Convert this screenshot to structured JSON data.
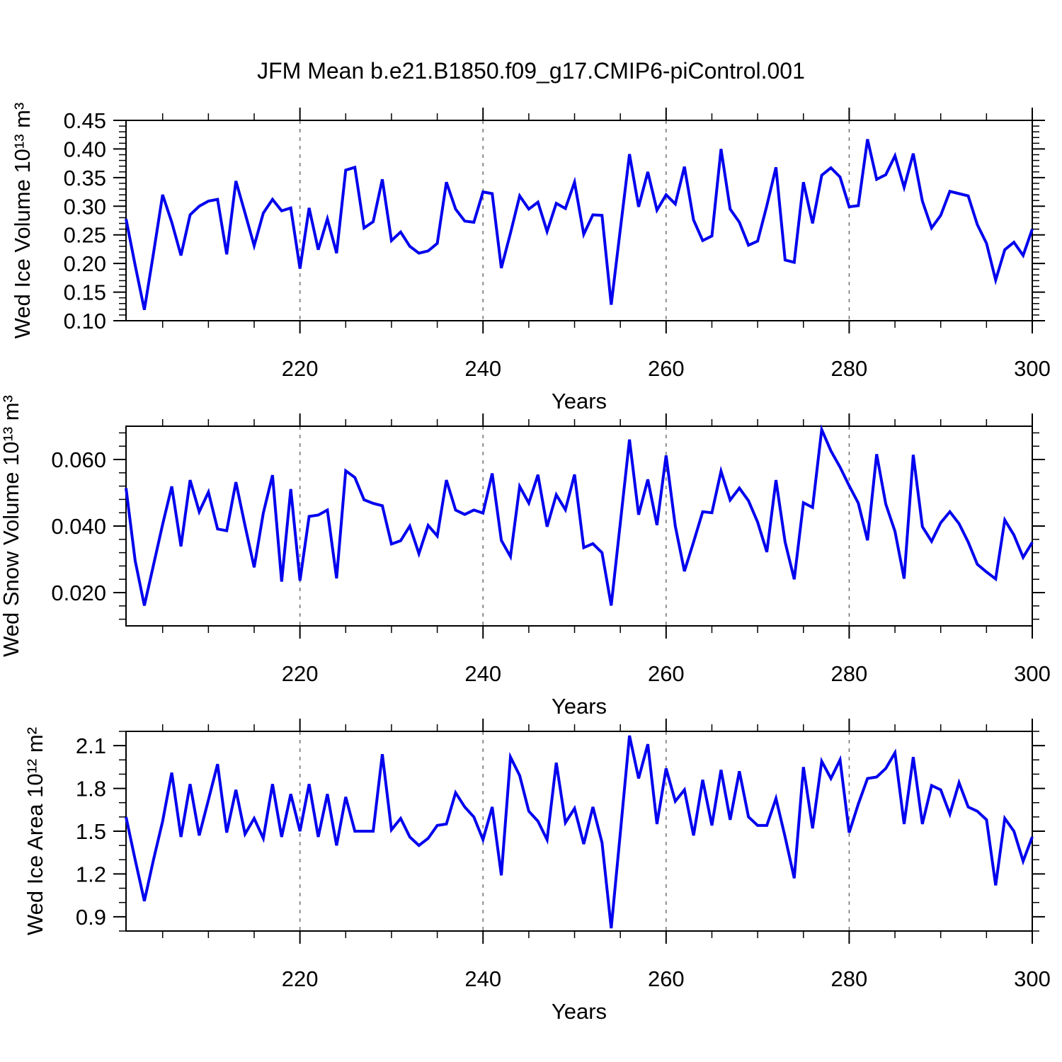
{
  "title": "JFM Mean b.e21.B1850.f09_g17.CMIP6-piControl.001",
  "colors": {
    "line": "#0000ee",
    "frame": "#000000",
    "grid": "#666666"
  },
  "chart_data": [
    {
      "type": "line",
      "ylabel": "Wed Ice Volume 10¹³ m³",
      "xlabel": "Years",
      "years": {
        "start": 201,
        "end": 300,
        "step": 1
      },
      "xlim": [
        201,
        300
      ],
      "ylim": [
        0.1,
        0.45
      ],
      "xticks": [
        220,
        240,
        260,
        280,
        300
      ],
      "xtick_minor": 5,
      "x_grid_dashed": [
        220,
        240,
        260,
        280
      ],
      "ytick_values": [
        0.45,
        0.4,
        0.35,
        0.3,
        0.25,
        0.2,
        0.15,
        0.1
      ],
      "ytick_labels": [
        "0.45",
        "0.40",
        "0.35",
        "0.30",
        "0.25",
        "0.20",
        "0.15",
        "0.10"
      ],
      "ytick_minor": 0.01,
      "values": [
        0.278,
        0.197,
        0.119,
        0.218,
        0.32,
        0.272,
        0.214,
        0.285,
        0.3,
        0.309,
        0.312,
        0.216,
        0.344,
        0.288,
        0.231,
        0.288,
        0.312,
        0.292,
        0.297,
        0.191,
        0.297,
        0.224,
        0.278,
        0.218,
        0.363,
        0.368,
        0.262,
        0.273,
        0.347,
        0.24,
        0.255,
        0.23,
        0.218,
        0.222,
        0.235,
        0.342,
        0.295,
        0.274,
        0.272,
        0.325,
        0.322,
        0.192,
        0.253,
        0.318,
        0.295,
        0.307,
        0.256,
        0.305,
        0.296,
        0.342,
        0.251,
        0.285,
        0.284,
        0.128,
        0.26,
        0.391,
        0.299,
        0.36,
        0.293,
        0.32,
        0.304,
        0.369,
        0.276,
        0.24,
        0.248,
        0.4,
        0.295,
        0.272,
        0.232,
        0.239,
        0.301,
        0.368,
        0.206,
        0.202,
        0.342,
        0.27,
        0.354,
        0.367,
        0.351,
        0.299,
        0.301,
        0.417,
        0.347,
        0.355,
        0.388,
        0.333,
        0.392,
        0.309,
        0.262,
        0.284,
        0.326,
        0.322,
        0.318,
        0.268,
        0.235,
        0.171,
        0.224,
        0.237,
        0.214,
        0.26
      ]
    },
    {
      "type": "line",
      "ylabel": "Wed Snow Volume 10¹³ m³",
      "xlabel": "Years",
      "years": {
        "start": 201,
        "end": 300,
        "step": 1
      },
      "xlim": [
        201,
        300
      ],
      "ylim": [
        0.01,
        0.07
      ],
      "xticks": [
        220,
        240,
        260,
        280,
        300
      ],
      "xtick_minor": 5,
      "x_grid_dashed": [
        220,
        240,
        260,
        280
      ],
      "ytick_values": [
        0.06,
        0.04,
        0.02
      ],
      "ytick_labels": [
        "0.060",
        "0.040",
        "0.020"
      ],
      "ytick_minor": 0.004,
      "values": [
        0.0514,
        0.0296,
        0.0161,
        0.0283,
        0.0405,
        0.0519,
        0.0339,
        0.0538,
        0.0443,
        0.0502,
        0.0391,
        0.0386,
        0.0532,
        0.0401,
        0.0276,
        0.0439,
        0.0553,
        0.0233,
        0.0511,
        0.0236,
        0.0429,
        0.0433,
        0.0448,
        0.0243,
        0.0566,
        0.0546,
        0.0479,
        0.0468,
        0.0461,
        0.0346,
        0.0356,
        0.04,
        0.0317,
        0.0402,
        0.037,
        0.0538,
        0.0448,
        0.0435,
        0.0448,
        0.0439,
        0.0558,
        0.0357,
        0.0308,
        0.0519,
        0.0469,
        0.0554,
        0.0398,
        0.0494,
        0.0449,
        0.0555,
        0.0335,
        0.0347,
        0.032,
        0.0161,
        0.041,
        0.066,
        0.0434,
        0.054,
        0.0403,
        0.0612,
        0.04,
        0.0264,
        0.0352,
        0.0443,
        0.044,
        0.0565,
        0.0478,
        0.0514,
        0.0476,
        0.0412,
        0.0322,
        0.0538,
        0.0352,
        0.024,
        0.047,
        0.0456,
        0.069,
        0.0626,
        0.0577,
        0.0521,
        0.0469,
        0.0357,
        0.0616,
        0.0466,
        0.0384,
        0.0242,
        0.0614,
        0.0398,
        0.0354,
        0.041,
        0.0443,
        0.0407,
        0.0352,
        0.0285,
        0.0262,
        0.0241,
        0.0418,
        0.0373,
        0.0306,
        0.0351
      ]
    },
    {
      "type": "line",
      "ylabel": "Wed Ice Area 10¹² m²",
      "xlabel": "Years",
      "years": {
        "start": 201,
        "end": 300,
        "step": 1
      },
      "xlim": [
        201,
        300
      ],
      "ylim": [
        0.8,
        2.2
      ],
      "xticks": [
        220,
        240,
        260,
        280,
        300
      ],
      "xtick_minor": 5,
      "x_grid_dashed": [
        220,
        240,
        260,
        280
      ],
      "ytick_values": [
        2.1,
        1.8,
        1.5,
        1.2,
        0.9
      ],
      "ytick_labels": [
        "2.1",
        "1.8",
        "1.5",
        "1.2",
        "0.9"
      ],
      "ytick_minor": 0.1,
      "values": [
        1.6,
        1.3,
        1.01,
        1.3,
        1.57,
        1.91,
        1.46,
        1.83,
        1.47,
        1.72,
        1.97,
        1.49,
        1.79,
        1.48,
        1.59,
        1.45,
        1.83,
        1.46,
        1.76,
        1.5,
        1.83,
        1.46,
        1.76,
        1.4,
        1.74,
        1.5,
        1.5,
        1.5,
        2.04,
        1.51,
        1.59,
        1.46,
        1.4,
        1.45,
        1.54,
        1.55,
        1.77,
        1.67,
        1.6,
        1.44,
        1.67,
        1.19,
        2.02,
        1.89,
        1.64,
        1.57,
        1.44,
        1.98,
        1.56,
        1.66,
        1.41,
        1.67,
        1.42,
        0.82,
        1.49,
        2.17,
        1.87,
        2.11,
        1.55,
        1.94,
        1.71,
        1.79,
        1.47,
        1.86,
        1.54,
        1.93,
        1.58,
        1.92,
        1.6,
        1.54,
        1.54,
        1.73,
        1.46,
        1.17,
        1.95,
        1.52,
        1.99,
        1.87,
        2.0,
        1.49,
        1.69,
        1.87,
        1.88,
        1.94,
        2.05,
        1.55,
        2.02,
        1.55,
        1.82,
        1.79,
        1.62,
        1.84,
        1.67,
        1.64,
        1.58,
        1.12,
        1.59,
        1.5,
        1.29,
        1.46
      ]
    }
  ]
}
